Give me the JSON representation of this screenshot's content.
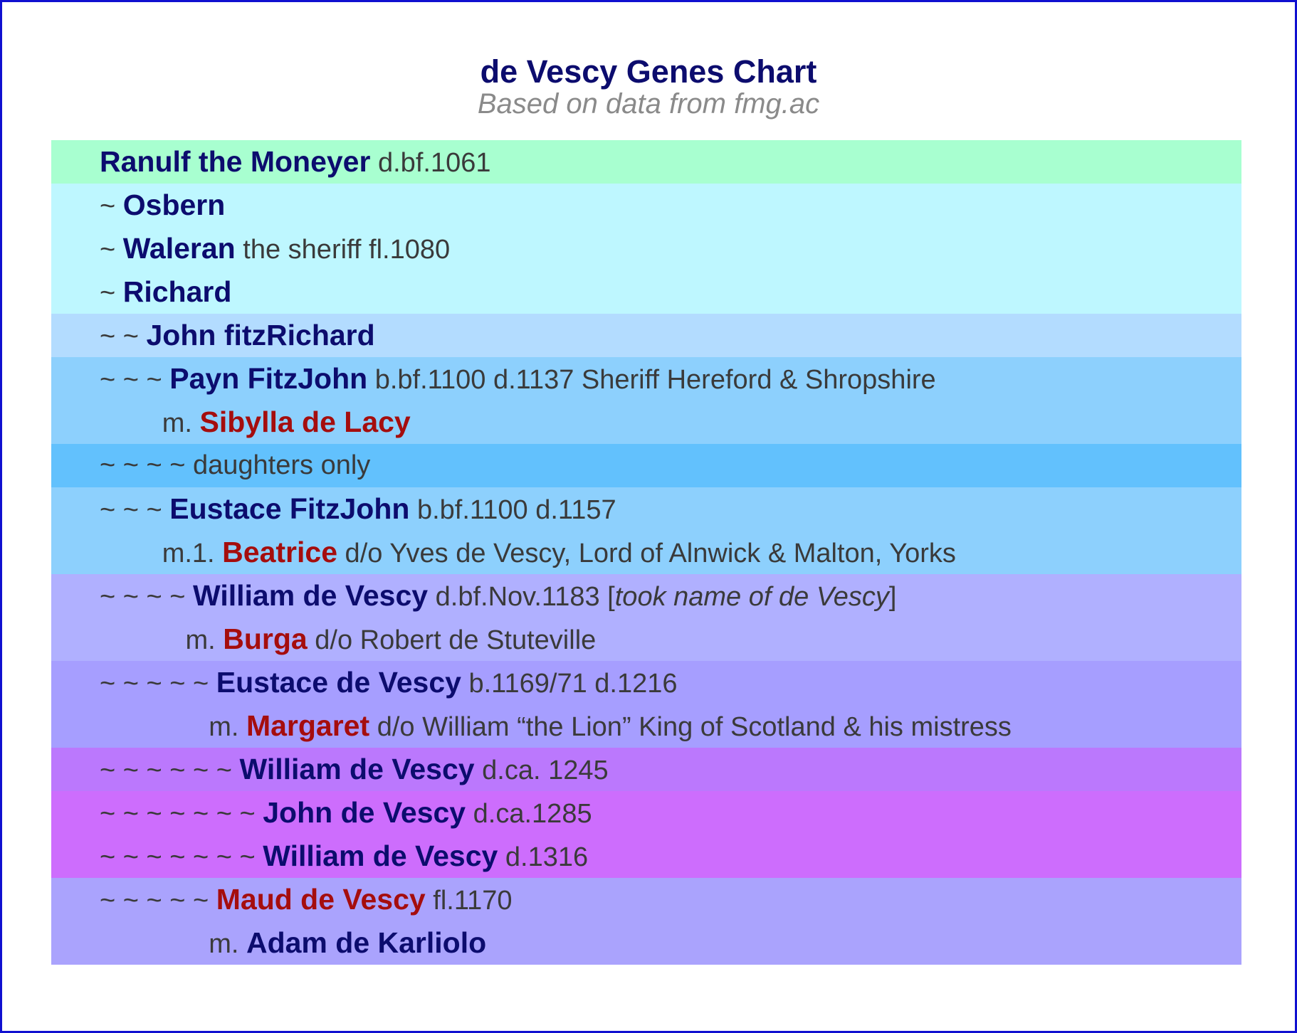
{
  "title": "de Vescy Genes Chart",
  "subtitle": "Based on data from fmg.ac",
  "colors": {
    "border": "#1010d0",
    "person_name": "#0c0c6e",
    "spouse_name": "#a50d0d",
    "band_1": "#a8ffd0",
    "band_2": "#bef7ff",
    "band_3": "#b3dcff",
    "band_4": "#8dd0fd",
    "band_5": "#62c1fd",
    "band_6": "#8dd0fd",
    "band_7": "#b0b0ff",
    "band_8": "#a69eff",
    "band_9": "#bb78fd",
    "band_10": "#cd6dfd",
    "band_11": "#aaa3fd"
  },
  "bands": [
    {
      "color": "#a8ffd0",
      "lines": [
        {
          "tildes": "",
          "name": "Ranulf the Moneyer",
          "note": " d.bf.1061"
        }
      ]
    },
    {
      "color": "#bef7ff",
      "lines": [
        {
          "tildes": "~ ",
          "name": "Osbern",
          "note": ""
        },
        {
          "tildes": "~ ",
          "name": "Waleran",
          "note": " the sheriff fl.1080"
        },
        {
          "tildes": "~ ",
          "name": "Richard",
          "note": ""
        }
      ]
    },
    {
      "color": "#b3dcff",
      "lines": [
        {
          "tildes": "~ ~ ",
          "name": "John fitzRichard",
          "note": ""
        }
      ]
    },
    {
      "color": "#8dd0fd",
      "lines": [
        {
          "tildes": "~ ~ ~ ",
          "name": "Payn FitzJohn",
          "note": " b.bf.1100 d.1137 Sheriff Hereford & Shropshire"
        },
        {
          "marriage": true,
          "prefix": "m. ",
          "spouse": "Sibylla de Lacy",
          "note": ""
        }
      ]
    },
    {
      "color": "#62c1fd",
      "lines": [
        {
          "tildes": "~ ~ ~ ~ ",
          "name": "",
          "note": "daughters only"
        }
      ]
    },
    {
      "color": "#8dd0fd",
      "lines": [
        {
          "tildes": "~ ~ ~ ",
          "name": "Eustace FitzJohn",
          "note": " b.bf.1100 d.1157"
        },
        {
          "marriage": true,
          "prefix": "m.1. ",
          "spouse": "Beatrice",
          "note": " d/o Yves de Vescy, Lord of Alnwick & Malton, Yorks"
        }
      ]
    },
    {
      "color": "#b0b0ff",
      "lines": [
        {
          "tildes": "~ ~ ~ ~ ",
          "name": "William de Vescy",
          "note": " d.bf.Nov.1183 [",
          "italic": "took name of de Vescy",
          "after": "]"
        },
        {
          "marriage": true,
          "prefix": "m. ",
          "spouse": "Burga",
          "note": " d/o Robert de Stuteville"
        }
      ]
    },
    {
      "color": "#a69eff",
      "lines": [
        {
          "tildes": "~ ~ ~ ~ ~ ",
          "name": "Eustace de Vescy",
          "note": " b.1169/71 d.1216"
        },
        {
          "marriage": true,
          "prefix": "m. ",
          "spouse": "Margaret",
          "note": " d/o William “the Lion” King of Scotland & his mistress"
        }
      ]
    },
    {
      "color": "#bb78fd",
      "lines": [
        {
          "tildes": "~ ~ ~ ~ ~ ~ ",
          "name": "William de Vescy",
          "note": " d.ca. 1245"
        }
      ]
    },
    {
      "color": "#cd6dfd",
      "lines": [
        {
          "tildes": "~ ~ ~ ~ ~ ~ ~ ",
          "name": "John de Vescy",
          "note": " d.ca.1285"
        },
        {
          "tildes": "~ ~ ~ ~ ~ ~ ~ ",
          "name": "William de Vescy",
          "note": " d.1316"
        }
      ]
    },
    {
      "color": "#aaa3fd",
      "lines": [
        {
          "tildes": "~ ~ ~ ~ ~ ",
          "name": "",
          "spouse_first": "Maud de Vescy",
          "note": " fl.1170"
        },
        {
          "marriage": true,
          "prefix": "m. ",
          "name_after_prefix": "Adam de Karliolo",
          "note": ""
        }
      ]
    }
  ]
}
